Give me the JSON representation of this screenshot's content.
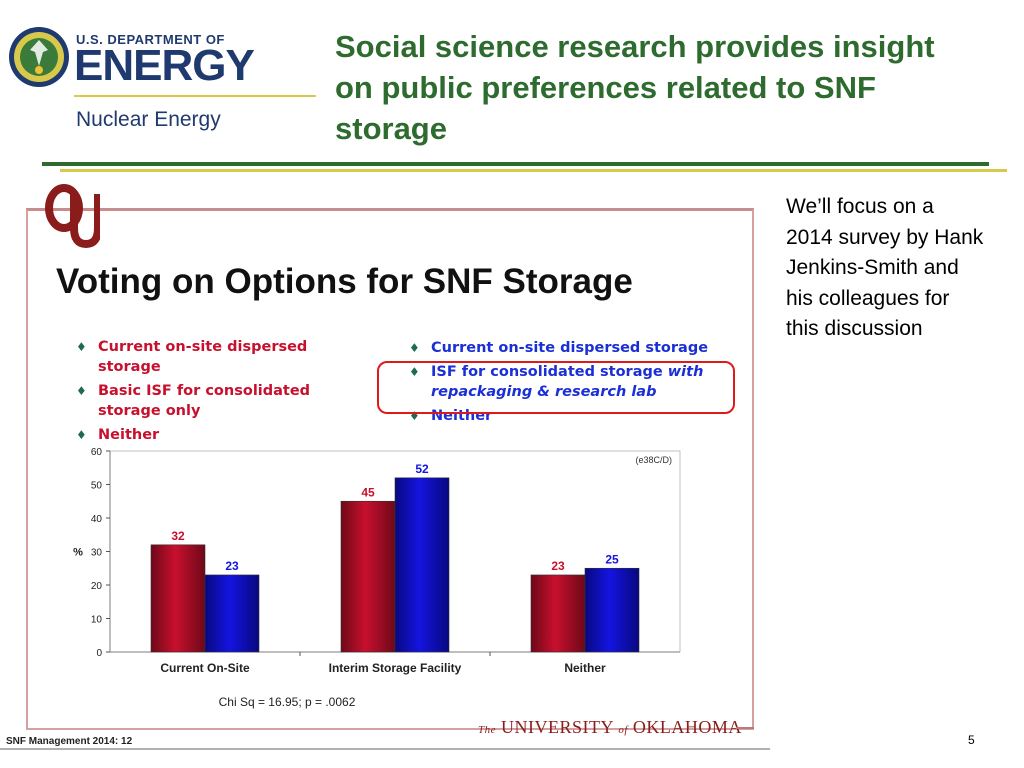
{
  "header": {
    "doe_top": "U.S. DEPARTMENT OF",
    "doe_big": "ENERGY",
    "doe_sub": "Nuclear Energy",
    "slide_title": "Social science research provides insight on public preferences related to SNF storage"
  },
  "panel": {
    "title": "Voting on Options for SNF Storage",
    "left_bullets": [
      "Current on-site dispersed storage",
      "Basic ISF for consolidated storage only",
      "Neither"
    ],
    "right_bullets": {
      "item1": "Current on-site dispersed storage",
      "item2_plain": "ISF for consolidated storage ",
      "item2_italic": "with repackaging & research lab",
      "item3": "Neither"
    },
    "ou_footer_the": "The",
    "ou_footer_university": "UNIVERSITY",
    "ou_footer_of": "of",
    "ou_footer_state": "OKLAHOMA"
  },
  "chart_data": {
    "type": "bar",
    "categories": [
      "Current On-Site",
      "Interim Storage Facility",
      "Neither"
    ],
    "series": [
      {
        "values": [
          32,
          45,
          23
        ],
        "color": "#c8102e"
      },
      {
        "values": [
          23,
          52,
          25
        ],
        "color": "#1414e0"
      }
    ],
    "ylabel": "%",
    "ylim": [
      0,
      60
    ],
    "yticks": [
      0,
      10,
      20,
      30,
      40,
      50,
      60
    ],
    "corner_label": "(e38C/D)",
    "footnote": "Chi Sq = 16.95; p = .0062",
    "grid": false,
    "data_labels": true
  },
  "footer": {
    "note": "SNF Management 2014: 12",
    "page_number": "5"
  },
  "side_text": "We’ll focus on a 2014 survey by Hank Jenkins-Smith and his colleagues  for this discussion",
  "colors": {
    "title_green": "#2e6b2e",
    "doe_blue": "#1e3a6e",
    "gold": "#d8c94c",
    "ou_red": "#8a1c1c"
  }
}
